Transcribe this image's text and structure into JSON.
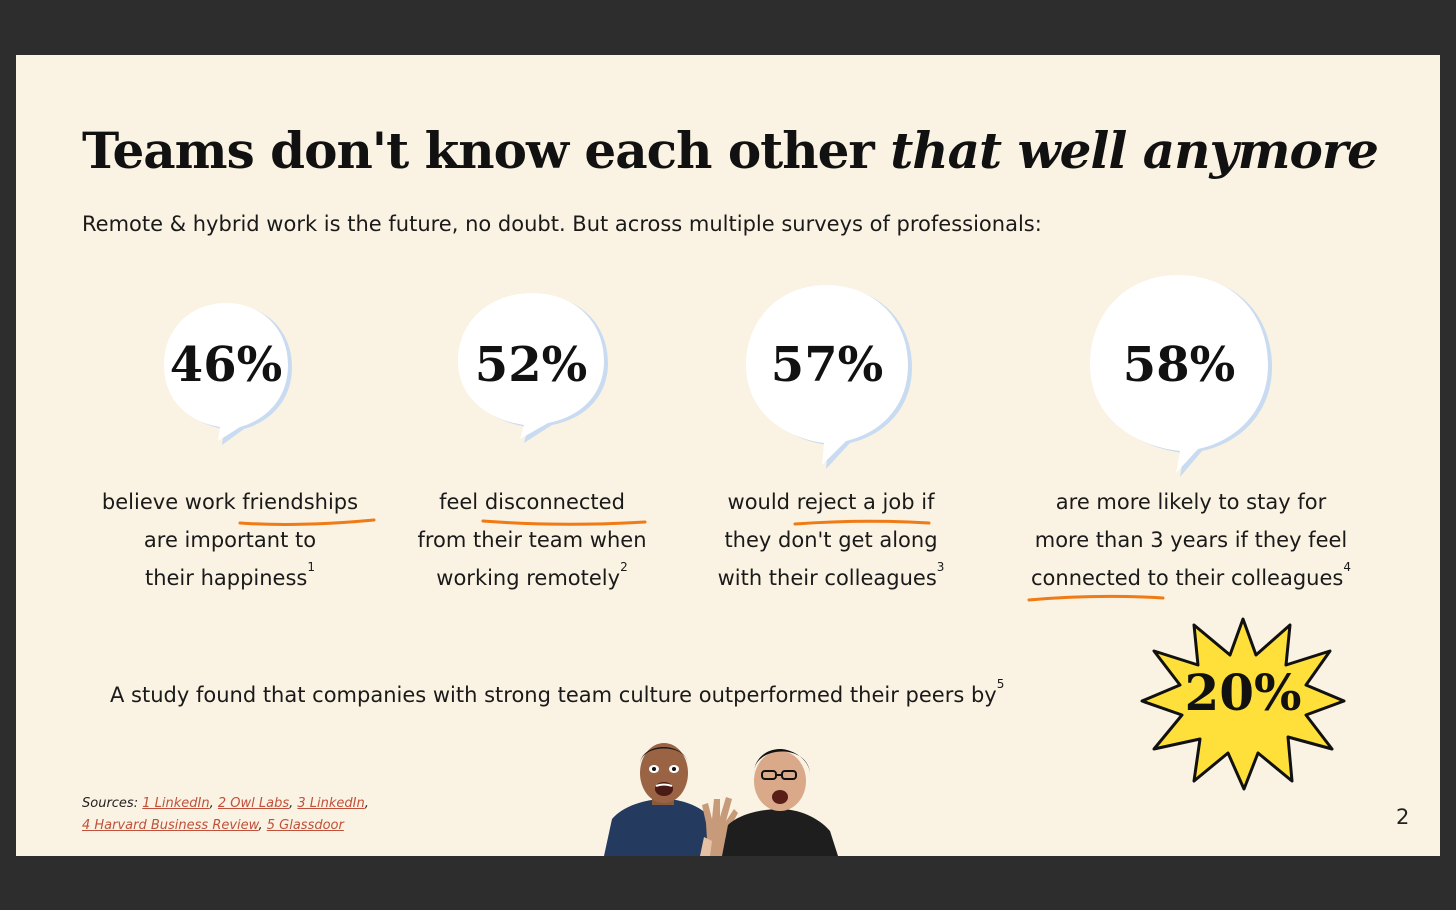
{
  "slide": {
    "title_plain": "Teams don't know each other ",
    "title_italic": "that well anymore",
    "subtitle": "Remote & hybrid work is the future, no doubt. But across multiple surveys of professionals:"
  },
  "stats": [
    {
      "value": "46%",
      "line1_pre": "believe work ",
      "line1_underlined": "friendships",
      "line2": "are important to",
      "line3": "their happiness",
      "footnote": "1"
    },
    {
      "value": "52%",
      "line1_pre": "feel ",
      "line1_underlined": "disconnected",
      "line2": "from their team when",
      "line3": "working remotely",
      "footnote": "2"
    },
    {
      "value": "57%",
      "line1_pre": "would ",
      "line1_underlined": "reject a job",
      "line1_post": " if",
      "line2": "they don't get along",
      "line3": "with their colleagues",
      "footnote": "3"
    },
    {
      "value": "58%",
      "line1": "are more likely to stay for",
      "line2": "more than 3 years if they feel",
      "line3_underlined": "connected",
      "line3_post": " to their colleagues",
      "footnote": "4"
    }
  ],
  "study": {
    "text": "A study found that companies with strong team culture outperformed their peers by",
    "footnote": "5",
    "value": "20%"
  },
  "sources": {
    "label": "Sources: ",
    "links": [
      "1 LinkedIn",
      "2 Owl Labs",
      "3 LinkedIn",
      "4 Harvard Business Review",
      "5 Glassdoor"
    ]
  },
  "page_number": "2",
  "colors": {
    "background": "#faf2e2",
    "underline": "#f07a14",
    "burst": "#ffe03a",
    "link": "#c0513a",
    "bubble_shadow": "#c9dbf0"
  }
}
